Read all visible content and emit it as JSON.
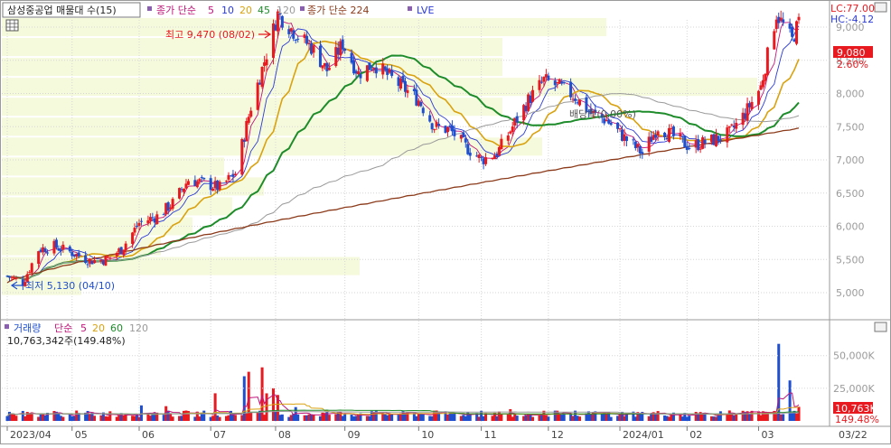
{
  "price_panel": {
    "title": "삼성중공업 매물대 수(15)",
    "ma_label": "종가 단순",
    "ma_periods": [
      "5",
      "10",
      "20",
      "45",
      "120"
    ],
    "ma_colors": [
      "#c0157a",
      "#2a3ad6",
      "#d9a20f",
      "#1e8c2a",
      "#9a9a9a"
    ],
    "ma2_label": "종가 단순 224",
    "ma2_color": "#8b3a1a",
    "lve_label": "LVE",
    "lc_label": "LC:77.00",
    "hc_label": "HC:-4.12",
    "high_annot": "최고 9,470 (08/02)",
    "low_annot": "최저 5,130 (04/10)",
    "div_annot": "배당락(0.00%)",
    "last_price": "9,080",
    "last_change": "2.60%",
    "up_color": "#e8191f",
    "down_color": "#1f4fcf"
  },
  "volume_panel": {
    "label": "거래량",
    "ma_label": "단순",
    "ma_periods": [
      "5",
      "20",
      "60",
      "120"
    ],
    "ma_colors": [
      "#c0157a",
      "#d9a20f",
      "#1e8c2a",
      "#9a9a9a"
    ],
    "current_value": "10,763,342주(149.48%)",
    "last_value": "10,763K",
    "last_pct": "149.48%"
  },
  "chart_data": [
    {
      "type": "candlestick",
      "title": "삼성중공업",
      "x_labels": [
        "2023/04",
        "05",
        "06",
        "07",
        "08",
        "09",
        "10",
        "11",
        "12",
        "2024/01",
        "02",
        "03",
        "03/22"
      ],
      "y_ticks": [
        5000,
        5500,
        6000,
        6500,
        7000,
        7500,
        8000,
        8500,
        9000
      ],
      "ylim": [
        4550,
        9550
      ],
      "y_tick_labels": [
        "5,000",
        "5,500",
        "6,000",
        "6,500",
        "7,000",
        "7,500",
        "8,000",
        "8,500",
        "9,000"
      ],
      "closing_path": [
        [
          "2023-04-03",
          5250
        ],
        [
          "2023-04-10",
          5150
        ],
        [
          "2023-04-17",
          5650
        ],
        [
          "2023-04-24",
          5700
        ],
        [
          "2023-05-02",
          5600
        ],
        [
          "2023-05-10",
          5480
        ],
        [
          "2023-05-17",
          5500
        ],
        [
          "2023-05-24",
          5650
        ],
        [
          "2023-06-01",
          6050
        ],
        [
          "2023-06-09",
          6150
        ],
        [
          "2023-06-16",
          6350
        ],
        [
          "2023-06-23",
          6700
        ],
        [
          "2023-06-30",
          6650
        ],
        [
          "2023-07-07",
          6580
        ],
        [
          "2023-07-14",
          6800
        ],
        [
          "2023-07-21",
          7800
        ],
        [
          "2023-07-28",
          8600
        ],
        [
          "2023-08-02",
          9200
        ],
        [
          "2023-08-10",
          8900
        ],
        [
          "2023-08-17",
          8700
        ],
        [
          "2023-08-24",
          8350
        ],
        [
          "2023-08-31",
          8750
        ],
        [
          "2023-09-07",
          8300
        ],
        [
          "2023-09-14",
          8450
        ],
        [
          "2023-09-21",
          8250
        ],
        [
          "2023-10-04",
          7900
        ],
        [
          "2023-10-11",
          7500
        ],
        [
          "2023-10-18",
          7450
        ],
        [
          "2023-10-25",
          7200
        ],
        [
          "2023-11-01",
          7000
        ],
        [
          "2023-11-08",
          7100
        ],
        [
          "2023-11-15",
          7500
        ],
        [
          "2023-11-22",
          7900
        ],
        [
          "2023-11-29",
          8200
        ],
        [
          "2023-12-06",
          8100
        ],
        [
          "2023-12-13",
          7950
        ],
        [
          "2023-12-20",
          7700
        ],
        [
          "2023-12-27",
          7600
        ],
        [
          "2024-01-05",
          7300
        ],
        [
          "2024-01-12",
          7100
        ],
        [
          "2024-01-19",
          7500
        ],
        [
          "2024-01-26",
          7350
        ],
        [
          "2024-02-02",
          7200
        ],
        [
          "2024-02-13",
          7300
        ],
        [
          "2024-02-20",
          7400
        ],
        [
          "2024-02-27",
          7700
        ],
        [
          "2024-03-05",
          8100
        ],
        [
          "2024-03-12",
          9200
        ],
        [
          "2024-03-19",
          8800
        ],
        [
          "2024-03-22",
          9080
        ]
      ],
      "annotations": [
        {
          "label": "최고 9,470 (08/02)",
          "x": "2023-08-02",
          "y": 9470
        },
        {
          "label": "최저 5,130 (04/10)",
          "x": "2023-04-10",
          "y": 5130
        }
      ]
    },
    {
      "type": "bar",
      "title": "거래량",
      "y_ticks": [
        25000,
        50000
      ],
      "y_tick_labels": [
        "25,000K",
        "50,000K"
      ],
      "ylim": [
        0,
        65000
      ],
      "volume_k": [
        [
          "2023-04",
          8000
        ],
        [
          "2023-05",
          7000
        ],
        [
          "2023-06",
          12000
        ],
        [
          "2023-07",
          41000
        ],
        [
          "2023-08",
          20000
        ],
        [
          "2023-09",
          8000
        ],
        [
          "2023-10",
          9000
        ],
        [
          "2023-11",
          9000
        ],
        [
          "2023-12",
          8000
        ],
        [
          "2024-01",
          7000
        ],
        [
          "2024-02",
          7000
        ],
        [
          "2024-03",
          60000
        ]
      ]
    }
  ]
}
